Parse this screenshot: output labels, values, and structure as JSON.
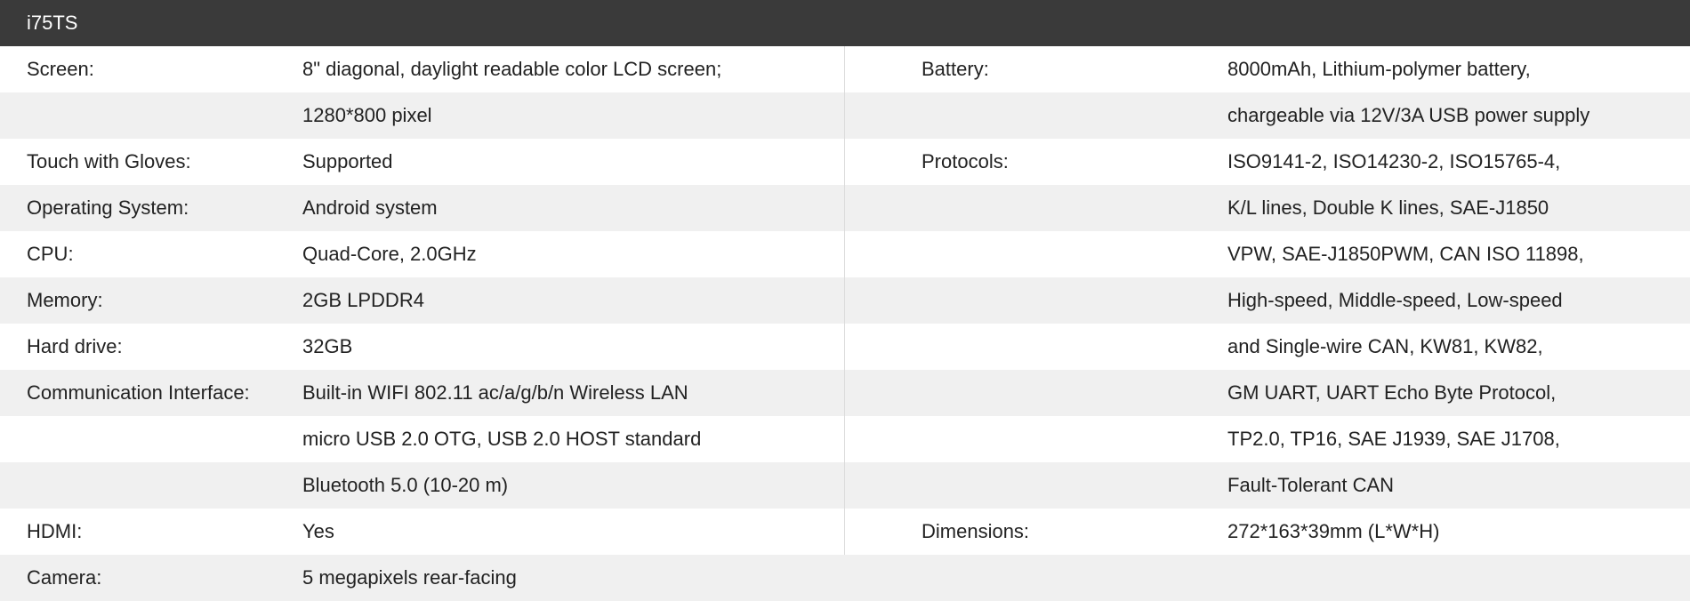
{
  "title": "i75TS",
  "rows": [
    {
      "l1": "Screen:",
      "v1": "8\" diagonal, daylight readable color LCD screen;",
      "l2": "Battery:",
      "v2": "8000mAh, Lithium-polymer battery,"
    },
    {
      "l1": "",
      "v1": "1280*800 pixel",
      "l2": "",
      "v2": "chargeable via 12V/3A USB power supply"
    },
    {
      "l1": "Touch with Gloves:",
      "v1": " Supported",
      "l2": "Protocols:",
      "v2": "ISO9141-2, ISO14230-2, ISO15765-4,"
    },
    {
      "l1": "Operating System:",
      "v1": "Android system",
      "l2": "",
      "v2": "K/L lines, Double K lines, SAE-J1850"
    },
    {
      "l1": "CPU:",
      "v1": "Quad-Core, 2.0GHz",
      "l2": "",
      "v2": "VPW, SAE-J1850PWM, CAN ISO 11898,"
    },
    {
      "l1": "Memory:",
      "v1": "2GB LPDDR4",
      "l2": "",
      "v2": "High-speed, Middle-speed, Low-speed"
    },
    {
      "l1": "Hard drive:",
      "v1": "32GB",
      "l2": "",
      "v2": "and Single-wire CAN, KW81, KW82,"
    },
    {
      "l1": "Communication Interface:",
      "v1": "Built-in WIFI 802.11 ac/a/g/b/n  Wireless LAN",
      "l2": "",
      "v2": "GM UART, UART Echo Byte Protocol,"
    },
    {
      "l1": "",
      "v1": "micro USB 2.0 OTG, USB 2.0 HOST standard",
      "l2": "",
      "v2": "TP2.0, TP16, SAE J1939, SAE J1708,"
    },
    {
      "l1": "",
      "v1": "Bluetooth 5.0 (10-20 m)",
      "l2": "",
      "v2": "Fault-Tolerant CAN"
    },
    {
      "l1": "HDMI:",
      "v1": "Yes",
      "l2": "Dimensions:",
      "v2": "272*163*39mm (L*W*H)"
    },
    {
      "l1": "Camera:",
      "v1": "5 megapixels rear-facing",
      "l2": "",
      "v2": ""
    }
  ]
}
